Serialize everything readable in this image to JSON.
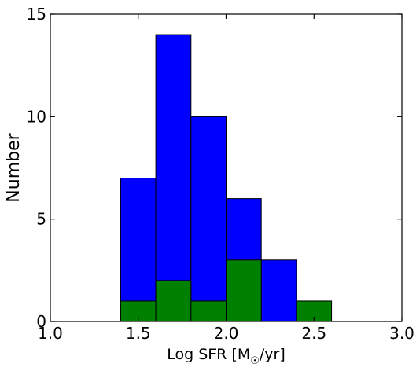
{
  "chart_data": {
    "type": "bar",
    "subtype": "overlaid histogram",
    "xlabel": "Log SFR [M",
    "xlabel_subscript": "☉",
    "xlabel_suffix": "/yr]",
    "ylabel": "Number",
    "xlim": [
      1.0,
      3.0
    ],
    "ylim": [
      0,
      15
    ],
    "xticks": [
      "1.0",
      "1.5",
      "2.0",
      "2.5",
      "3.0"
    ],
    "yticks": [
      "0",
      "5",
      "10",
      "15"
    ],
    "bin_edges": [
      1.4,
      1.6,
      1.8,
      2.0,
      2.2,
      2.4,
      2.6
    ],
    "grid": false,
    "series": [
      {
        "color": "#0000ff",
        "values": [
          7,
          14,
          10,
          6,
          3,
          0
        ]
      },
      {
        "color": "#008000",
        "values": [
          1,
          2,
          1,
          3,
          0,
          1
        ]
      }
    ]
  }
}
